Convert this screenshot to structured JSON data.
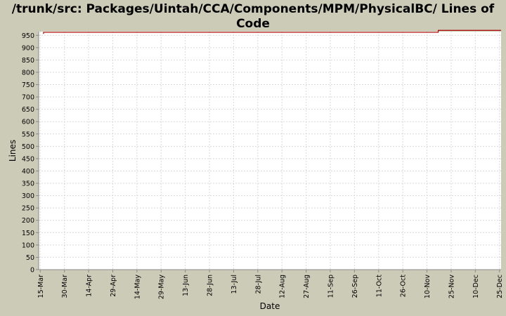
{
  "chart_data": {
    "type": "line",
    "title": "/trunk/src: Packages/Uintah/CCA/Components/MPM/PhysicalBC/ Lines of Code",
    "xlabel": "Date",
    "ylabel": "Lines",
    "ylim": [
      0,
      965
    ],
    "yticks": [
      0,
      50,
      100,
      150,
      200,
      250,
      300,
      350,
      400,
      450,
      500,
      550,
      600,
      650,
      700,
      750,
      800,
      850,
      900,
      950
    ],
    "xlim": [
      "2004-03-14",
      "2004-12-26"
    ],
    "xticks": [
      {
        "date": "2004-03-15",
        "label": "15-Mar"
      },
      {
        "date": "2004-03-30",
        "label": "30-Mar"
      },
      {
        "date": "2004-04-14",
        "label": "14-Apr"
      },
      {
        "date": "2004-04-29",
        "label": "29-Apr"
      },
      {
        "date": "2004-05-14",
        "label": "14-May"
      },
      {
        "date": "2004-05-29",
        "label": "29-May"
      },
      {
        "date": "2004-06-13",
        "label": "13-Jun"
      },
      {
        "date": "2004-06-28",
        "label": "28-Jun"
      },
      {
        "date": "2004-07-13",
        "label": "13-Jul"
      },
      {
        "date": "2004-07-28",
        "label": "28-Jul"
      },
      {
        "date": "2004-08-12",
        "label": "12-Aug"
      },
      {
        "date": "2004-08-27",
        "label": "27-Aug"
      },
      {
        "date": "2004-09-11",
        "label": "11-Sep"
      },
      {
        "date": "2004-09-26",
        "label": "26-Sep"
      },
      {
        "date": "2004-10-11",
        "label": "11-Oct"
      },
      {
        "date": "2004-10-26",
        "label": "26-Oct"
      },
      {
        "date": "2004-11-10",
        "label": "10-Nov"
      },
      {
        "date": "2004-11-25",
        "label": "25-Nov"
      },
      {
        "date": "2004-12-10",
        "label": "10-Dec"
      },
      {
        "date": "2004-12-25",
        "label": "25-Dec"
      }
    ],
    "grid": true,
    "series": [
      {
        "color": "#aa0000",
        "step": true,
        "x": [
          "2004-03-17",
          "2004-11-17",
          "2004-12-26"
        ],
        "y": [
          962,
          970,
          970
        ]
      }
    ]
  }
}
